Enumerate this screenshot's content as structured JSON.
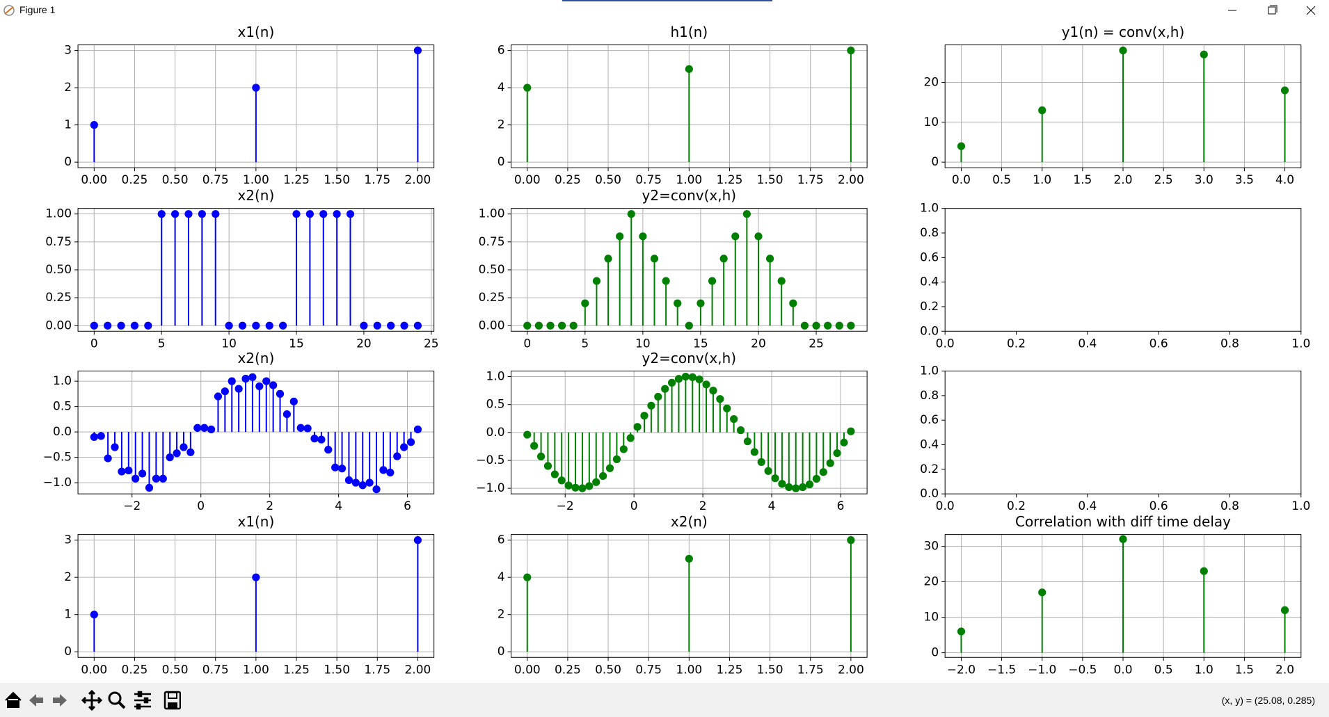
{
  "window": {
    "title": "Figure 1",
    "status": "(x, y) = (25.08, 0.285)"
  },
  "chart_data": [
    {
      "type": "stem",
      "title": "x1(n)",
      "color": "#0000ff",
      "grid": true,
      "x": [
        0,
        1,
        2
      ],
      "values": [
        1,
        2,
        3
      ],
      "xlim": [
        -0.1,
        2.1
      ],
      "ylim": [
        -0.15,
        3.15
      ],
      "xticks": [
        {
          "value": 0,
          "label": "0.00"
        },
        0.25,
        {
          "value": 0.5,
          "label": "0.50"
        },
        0.75,
        {
          "value": 1,
          "label": "1.00"
        },
        1.25,
        {
          "value": 1.5,
          "label": "1.50"
        },
        1.75,
        {
          "value": 2,
          "label": "2.00"
        }
      ],
      "yticks": [
        0,
        1,
        2,
        3
      ]
    },
    {
      "type": "stem",
      "title": "h1(n)",
      "color": "#008000",
      "grid": true,
      "x": [
        0,
        1,
        2
      ],
      "values": [
        4,
        5,
        6
      ],
      "xlim": [
        -0.1,
        2.1
      ],
      "ylim": [
        -0.3,
        6.3
      ],
      "xticks": [
        {
          "value": 0,
          "label": "0.00"
        },
        0.25,
        {
          "value": 0.5,
          "label": "0.50"
        },
        0.75,
        {
          "value": 1,
          "label": "1.00"
        },
        1.25,
        {
          "value": 1.5,
          "label": "1.50"
        },
        1.75,
        {
          "value": 2,
          "label": "2.00"
        }
      ],
      "yticks": [
        0,
        2,
        4,
        6
      ]
    },
    {
      "type": "stem",
      "title": "y1(n) = conv(x,h)",
      "color": "#008000",
      "grid": true,
      "x": [
        0,
        1,
        2,
        3,
        4
      ],
      "values": [
        4,
        13,
        28,
        27,
        18
      ],
      "xlim": [
        -0.2,
        4.2
      ],
      "ylim": [
        -1.4,
        29.4
      ],
      "xticks": [
        {
          "value": 0,
          "label": "0.0"
        },
        0.5,
        {
          "value": 1,
          "label": "1.0"
        },
        1.5,
        {
          "value": 2,
          "label": "2.0"
        },
        2.5,
        {
          "value": 3,
          "label": "3.0"
        },
        3.5,
        {
          "value": 4,
          "label": "4.0"
        }
      ],
      "yticks": [
        0,
        10,
        20
      ]
    },
    {
      "type": "stem",
      "title": "x2(n)",
      "color": "#0000ff",
      "grid": true,
      "x": [
        0,
        1,
        2,
        3,
        4,
        5,
        6,
        7,
        8,
        9,
        10,
        11,
        12,
        13,
        14,
        15,
        16,
        17,
        18,
        19,
        20,
        21,
        22,
        23,
        24
      ],
      "values": [
        0,
        0,
        0,
        0,
        0,
        1,
        1,
        1,
        1,
        1,
        0,
        0,
        0,
        0,
        0,
        1,
        1,
        1,
        1,
        1,
        0,
        0,
        0,
        0,
        0
      ],
      "xlim": [
        -1.2,
        25.2
      ],
      "ylim": [
        -0.05,
        1.05
      ],
      "xticks": [
        0,
        5,
        10,
        15,
        20,
        25
      ],
      "yticks": [
        {
          "value": 0,
          "label": "0.00"
        },
        0.25,
        {
          "value": 0.5,
          "label": "0.50"
        },
        0.75,
        {
          "value": 1,
          "label": "1.00"
        }
      ]
    },
    {
      "type": "stem",
      "title": "y2=conv(x,h)",
      "color": "#008000",
      "grid": true,
      "x": [
        0,
        1,
        2,
        3,
        4,
        5,
        6,
        7,
        8,
        9,
        10,
        11,
        12,
        13,
        14,
        15,
        16,
        17,
        18,
        19,
        20,
        21,
        22,
        23,
        24,
        25,
        26,
        27,
        28
      ],
      "values": [
        0,
        0,
        0,
        0,
        0,
        0.2,
        0.4,
        0.6,
        0.8,
        1.0,
        0.8,
        0.6,
        0.4,
        0.2,
        0,
        0.2,
        0.4,
        0.6,
        0.8,
        1.0,
        0.8,
        0.6,
        0.4,
        0.2,
        0,
        0,
        0,
        0,
        0
      ],
      "xlim": [
        -1.4,
        29.4
      ],
      "ylim": [
        -0.05,
        1.05
      ],
      "xticks": [
        0,
        5,
        10,
        15,
        20,
        25
      ],
      "yticks": [
        {
          "value": 0,
          "label": "0.00"
        },
        0.25,
        {
          "value": 0.5,
          "label": "0.50"
        },
        0.75,
        {
          "value": 1,
          "label": "1.00"
        }
      ]
    },
    {
      "type": "empty",
      "grid": false,
      "xlim": [
        0,
        1
      ],
      "ylim": [
        0,
        1
      ],
      "xticks": [
        {
          "value": 0,
          "label": "0.0"
        },
        0.2,
        0.4,
        0.6,
        0.8,
        {
          "value": 1,
          "label": "1.0"
        }
      ],
      "yticks": [
        {
          "value": 0,
          "label": "0.0"
        },
        0.2,
        0.4,
        0.6,
        0.8,
        {
          "value": 1,
          "label": "1.0"
        }
      ]
    },
    {
      "type": "stem",
      "title": "x2(n)",
      "color": "#0000ff",
      "grid": true,
      "x": [
        -3.1,
        -2.9,
        -2.7,
        -2.5,
        -2.3,
        -2.1,
        -1.9,
        -1.7,
        -1.5,
        -1.3,
        -1.1,
        -0.9,
        -0.7,
        -0.5,
        -0.3,
        -0.1,
        0.1,
        0.3,
        0.5,
        0.7,
        0.9,
        1.1,
        1.3,
        1.5,
        1.7,
        1.9,
        2.1,
        2.3,
        2.5,
        2.7,
        2.9,
        3.1,
        3.3,
        3.5,
        3.7,
        3.9,
        4.1,
        4.3,
        4.5,
        4.7,
        4.9,
        5.1,
        5.3,
        5.5,
        5.7,
        5.9,
        6.1,
        6.3
      ],
      "values": [
        -0.1,
        -0.08,
        -0.52,
        -0.3,
        -0.78,
        -0.76,
        -0.92,
        -0.82,
        -1.1,
        -0.92,
        -0.92,
        -0.5,
        -0.42,
        -0.3,
        -0.4,
        0.08,
        0.08,
        0.05,
        0.7,
        0.8,
        1.0,
        0.85,
        1.05,
        1.08,
        0.9,
        1.0,
        0.92,
        0.75,
        0.35,
        0.6,
        0.08,
        0.07,
        -0.13,
        -0.15,
        -0.35,
        -0.7,
        -0.72,
        -0.95,
        -1.0,
        -1.05,
        -1.0,
        -1.13,
        -0.75,
        -0.8,
        -0.48,
        -0.3,
        -0.2,
        0.05
      ],
      "xlim": [
        -3.57,
        6.77
      ],
      "ylim": [
        -1.22,
        1.2
      ],
      "xticks": [
        {
          "value": -2,
          "label": "−2"
        },
        0,
        2,
        4,
        6
      ],
      "yticks": [
        {
          "value": -1,
          "label": "−1.0"
        },
        {
          "value": -0.5,
          "label": "−0.5"
        },
        {
          "value": 0,
          "label": "0.0"
        },
        0.5,
        {
          "value": 1,
          "label": "1.0"
        }
      ]
    },
    {
      "type": "stem",
      "title": "y2=conv(x,h)",
      "color": "#008000",
      "grid": true,
      "x": [
        -3.1,
        -2.9,
        -2.7,
        -2.5,
        -2.3,
        -2.1,
        -1.9,
        -1.7,
        -1.5,
        -1.3,
        -1.1,
        -0.9,
        -0.7,
        -0.5,
        -0.3,
        -0.1,
        0.1,
        0.3,
        0.5,
        0.7,
        0.9,
        1.1,
        1.3,
        1.5,
        1.7,
        1.9,
        2.1,
        2.3,
        2.5,
        2.7,
        2.9,
        3.1,
        3.3,
        3.5,
        3.7,
        3.9,
        4.1,
        4.3,
        4.5,
        4.7,
        4.9,
        5.1,
        5.3,
        5.5,
        5.7,
        5.9,
        6.1,
        6.3
      ],
      "values": [
        -0.04,
        -0.24,
        -0.43,
        -0.6,
        -0.75,
        -0.86,
        -0.95,
        -0.99,
        -1.0,
        -0.96,
        -0.89,
        -0.78,
        -0.64,
        -0.48,
        -0.3,
        -0.1,
        0.1,
        0.3,
        0.48,
        0.64,
        0.78,
        0.89,
        0.96,
        1.0,
        0.99,
        0.95,
        0.86,
        0.75,
        0.6,
        0.43,
        0.24,
        0.04,
        -0.16,
        -0.35,
        -0.53,
        -0.69,
        -0.82,
        -0.92,
        -0.98,
        -1.0,
        -0.98,
        -0.93,
        -0.83,
        -0.71,
        -0.55,
        -0.37,
        -0.18,
        0.02
      ],
      "xlim": [
        -3.57,
        6.77
      ],
      "ylim": [
        -1.1,
        1.1
      ],
      "xticks": [
        {
          "value": -2,
          "label": "−2"
        },
        0,
        2,
        4,
        6
      ],
      "yticks": [
        {
          "value": -1,
          "label": "−1.0"
        },
        {
          "value": -0.5,
          "label": "−0.5"
        },
        {
          "value": 0,
          "label": "0.0"
        },
        0.5,
        {
          "value": 1,
          "label": "1.0"
        }
      ]
    },
    {
      "type": "empty",
      "grid": false,
      "xlim": [
        0,
        1
      ],
      "ylim": [
        0,
        1
      ],
      "xticks": [
        {
          "value": 0,
          "label": "0.0"
        },
        0.2,
        0.4,
        0.6,
        0.8,
        {
          "value": 1,
          "label": "1.0"
        }
      ],
      "yticks": [
        {
          "value": 0,
          "label": "0.0"
        },
        0.2,
        0.4,
        0.6,
        0.8,
        {
          "value": 1,
          "label": "1.0"
        }
      ]
    },
    {
      "type": "stem",
      "title": "x1(n)",
      "color": "#0000ff",
      "grid": true,
      "x": [
        0,
        1,
        2
      ],
      "values": [
        1,
        2,
        3
      ],
      "xlim": [
        -0.1,
        2.1
      ],
      "ylim": [
        -0.15,
        3.15
      ],
      "xticks": [
        {
          "value": 0,
          "label": "0.00"
        },
        0.25,
        {
          "value": 0.5,
          "label": "0.50"
        },
        0.75,
        {
          "value": 1,
          "label": "1.00"
        },
        1.25,
        {
          "value": 1.5,
          "label": "1.50"
        },
        1.75,
        {
          "value": 2,
          "label": "2.00"
        }
      ],
      "yticks": [
        0,
        1,
        2,
        3
      ]
    },
    {
      "type": "stem",
      "title": "x2(n)",
      "color": "#008000",
      "grid": true,
      "x": [
        0,
        1,
        2
      ],
      "values": [
        4,
        5,
        6
      ],
      "xlim": [
        -0.1,
        2.1
      ],
      "ylim": [
        -0.3,
        6.3
      ],
      "xticks": [
        {
          "value": 0,
          "label": "0.00"
        },
        0.25,
        {
          "value": 0.5,
          "label": "0.50"
        },
        0.75,
        {
          "value": 1,
          "label": "1.00"
        },
        1.25,
        {
          "value": 1.5,
          "label": "1.50"
        },
        1.75,
        {
          "value": 2,
          "label": "2.00"
        }
      ],
      "yticks": [
        0,
        2,
        4,
        6
      ]
    },
    {
      "type": "stem",
      "title": "Correlation with diff time delay",
      "color": "#008000",
      "grid": true,
      "x": [
        -2,
        -1,
        0,
        1,
        2
      ],
      "values": [
        6,
        17,
        32,
        23,
        12
      ],
      "xlim": [
        -2.2,
        2.2
      ],
      "ylim": [
        -1.3,
        33.3
      ],
      "xticks": [
        {
          "value": -2,
          "label": "−2.0"
        },
        {
          "value": -1.5,
          "label": "−1.5"
        },
        {
          "value": -1,
          "label": "−1.0"
        },
        {
          "value": -0.5,
          "label": "−0.5"
        },
        {
          "value": 0,
          "label": "0.0"
        },
        0.5,
        {
          "value": 1,
          "label": "1.0"
        },
        1.5,
        {
          "value": 2,
          "label": "2.0"
        }
      ],
      "yticks": [
        0,
        10,
        20,
        30
      ]
    }
  ]
}
